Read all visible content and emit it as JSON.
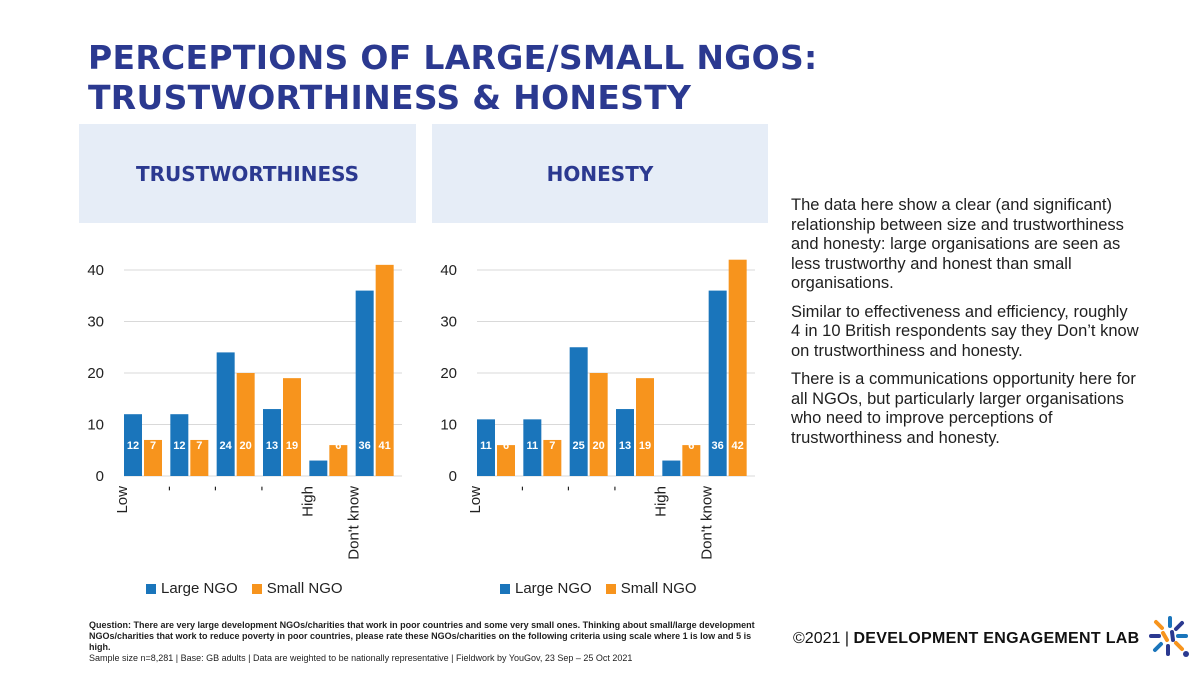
{
  "title": [
    "PERCEPTIONS OF LARGE/SMALL NGOS:",
    "TRUSTWORTHINESS & HONESTY"
  ],
  "colors": {
    "large": "#1a75bb",
    "small": "#f7941d",
    "title": "#2b3990",
    "panel": "#e6edf7"
  },
  "chart_data": [
    {
      "type": "bar",
      "title": "TRUSTWORTHINESS",
      "categories": [
        "Low",
        "-",
        "-",
        "-",
        "High",
        "Don't know"
      ],
      "series": [
        {
          "name": "Large NGO",
          "values": [
            12,
            12,
            24,
            13,
            3,
            36
          ]
        },
        {
          "name": "Small NGO",
          "values": [
            7,
            7,
            20,
            19,
            6,
            41
          ]
        }
      ],
      "yticks": [
        0,
        10,
        20,
        30,
        40
      ],
      "ylim": [
        0,
        42
      ],
      "grid": true,
      "legend": "bottom"
    },
    {
      "type": "bar",
      "title": "HONESTY",
      "categories": [
        "Low",
        "-",
        "-",
        "-",
        "High",
        "Don't know"
      ],
      "series": [
        {
          "name": "Large NGO",
          "values": [
            11,
            11,
            25,
            13,
            3,
            36
          ]
        },
        {
          "name": "Small NGO",
          "values": [
            6,
            7,
            20,
            19,
            6,
            42
          ]
        }
      ],
      "yticks": [
        0,
        10,
        20,
        30,
        40
      ],
      "ylim": [
        0,
        42
      ],
      "grid": true,
      "legend": "bottom"
    }
  ],
  "commentary": [
    "The data here show a clear (and significant) relationship between size and trustworthiness and honesty: large organisations are seen as less trustworthy and honest than small organisations.",
    "Similar to effectiveness and efficiency, roughly 4 in 10 British respondents say they Don’t know on trustworthiness and honesty.",
    "There is a communications opportunity here for all NGOs, but particularly larger organisations who need to improve perceptions of trustworthiness and honesty."
  ],
  "footnote": {
    "question": "Question: There are very large development NGOs/charities that work in poor countries and some very small ones. Thinking about small/large development NGOs/charities that work to reduce poverty in poor countries, please rate these NGOs/charities on the following criteria using scale where 1 is low and 5 is high.",
    "sample": "Sample size n=8,281 | Base: GB adults | Data are weighted to be nationally representative | Fieldwork by YouGov, 23 Sep – 25 Oct 2021"
  },
  "copyright": {
    "prefix": "©2021 | ",
    "org": "DEVELOPMENT ENGAGEMENT LAB"
  },
  "logo_icon": "dev-engagement-lab-logo-icon"
}
